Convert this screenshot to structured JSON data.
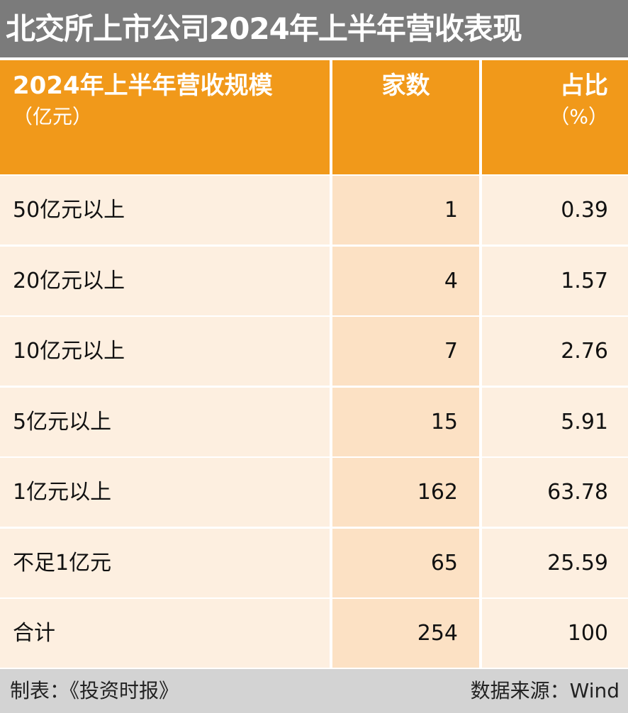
{
  "title": "北交所上市公司2024年上半年营收表现",
  "header": {
    "col1": "2024年上半年营收规模",
    "col1_unit": "（亿元）",
    "col2": "家数",
    "col3": "占比",
    "col3_unit": "（%）"
  },
  "rows": [
    {
      "label": "50亿元以上",
      "count": "1",
      "share": "0.39"
    },
    {
      "label": "20亿元以上",
      "count": "4",
      "share": "1.57"
    },
    {
      "label": "10亿元以上",
      "count": "7",
      "share": "2.76"
    },
    {
      "label": "5亿元以上",
      "count": "15",
      "share": "5.91"
    },
    {
      "label": "1亿元以上",
      "count": "162",
      "share": "63.78"
    },
    {
      "label": "不足1亿元",
      "count": "65",
      "share": "25.59"
    },
    {
      "label": "合计",
      "count": "254",
      "share": "100"
    }
  ],
  "footer": {
    "left": "制表：《投资时报》",
    "right": "数据来源：Wind"
  },
  "colors": {
    "title_bg": "#7b7b7b",
    "header_bg": "#f1991a",
    "row_bg": "#fdefe0",
    "count_col_bg": "#fce1c4",
    "footer_bg": "#d3d3d3"
  },
  "chart_data": {
    "type": "table",
    "title": "北交所上市公司2024年上半年营收表现",
    "columns": [
      "2024年上半年营收规模（亿元）",
      "家数",
      "占比（%）"
    ],
    "rows": [
      [
        "50亿元以上",
        1,
        0.39
      ],
      [
        "20亿元以上",
        4,
        1.57
      ],
      [
        "10亿元以上",
        7,
        2.76
      ],
      [
        "5亿元以上",
        15,
        5.91
      ],
      [
        "1亿元以上",
        162,
        63.78
      ],
      [
        "不足1亿元",
        65,
        25.59
      ],
      [
        "合计",
        254,
        100
      ]
    ]
  }
}
